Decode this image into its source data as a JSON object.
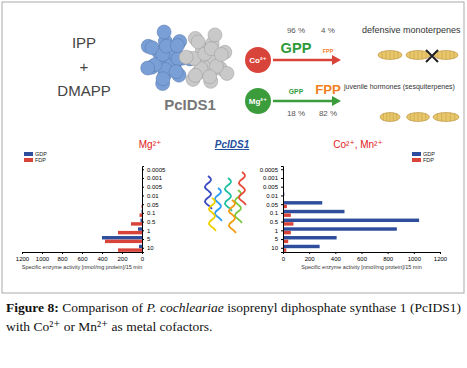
{
  "chart_data": [
    {
      "type": "bar",
      "orientation": "horizontal",
      "title": "Mg²⁺",
      "categories": [
        "0.0005",
        "0.001",
        "0.005",
        "0.01",
        "0.05",
        "0.1",
        "0.5",
        "1",
        "5",
        "10"
      ],
      "series": [
        {
          "name": "GDP",
          "color": "#2e4d9c",
          "values": [
            0,
            0,
            0,
            0,
            0,
            5,
            15,
            40,
            400,
            30
          ]
        },
        {
          "name": "FDP",
          "color": "#d9443a",
          "values": [
            0,
            0,
            0,
            0,
            5,
            25,
            110,
            240,
            370,
            240
          ]
        }
      ],
      "x_label": "Specific enzyme activity [nmol/mg protein]/15 min",
      "xlim": [
        1200,
        0
      ],
      "xticks": [
        1200,
        1000,
        800,
        600,
        400,
        200,
        0
      ],
      "legend": "top-left"
    },
    {
      "type": "bar",
      "orientation": "horizontal",
      "title": "Co²⁺, Mn²⁺",
      "categories": [
        "0.0005",
        "0.001",
        "0.005",
        "0.01",
        "0.05",
        "0.1",
        "0.5",
        "1",
        "5",
        "10"
      ],
      "series": [
        {
          "name": "GDP",
          "color": "#2e4d9c",
          "values": [
            0,
            0,
            0,
            10,
            300,
            470,
            1040,
            870,
            410,
            280
          ]
        },
        {
          "name": "FDP",
          "color": "#d9443a",
          "values": [
            0,
            0,
            0,
            0,
            30,
            60,
            80,
            60,
            40,
            25
          ]
        }
      ],
      "x_label": "Specific enzyme activity [nmol/mg protein]/15 min",
      "xlim": [
        0,
        1200
      ],
      "xticks": [
        0,
        200,
        400,
        600,
        800,
        1000,
        1200
      ],
      "legend": "top-right"
    }
  ],
  "diagram": {
    "substrates": [
      "IPP",
      "+",
      "DMAPP"
    ],
    "enzyme": "PcIDS1",
    "cofactors": [
      {
        "ion": "Co²⁺",
        "color": "#d9443a",
        "products": [
          {
            "name": "GPP",
            "color": "#2e9a3a",
            "share": 96,
            "share_label": "96 %"
          },
          {
            "name": "FPP",
            "color": "#f07f1e",
            "share": 4,
            "share_label": "4 %"
          }
        ]
      },
      {
        "ion": "Mg²⁺",
        "color": "#3b9c3b",
        "products": [
          {
            "name": "GPP",
            "color": "#2e9a3a",
            "share": 18,
            "share_label": "18 %"
          },
          {
            "name": "FPP",
            "color": "#f07f1e",
            "share": 82,
            "share_label": "82 %"
          }
        ]
      }
    ],
    "outcomes": [
      "defensive monoterpenes",
      "juvenile hormones (sesquiterpenes)"
    ],
    "structure_label": "PcIDS1"
  },
  "caption": {
    "label": "Figure 8:",
    "text": "Comparison of",
    "species": "P. cochleariae",
    "text_end": "isoprenyl diphosphate synthase 1 (PcIDS1) with Co²⁺ or Mn²⁺ as metal cofactors."
  }
}
